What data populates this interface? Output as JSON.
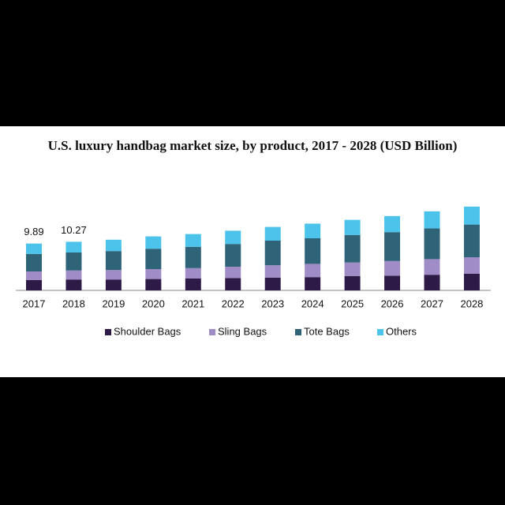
{
  "chart_data": {
    "type": "stacked_bar",
    "title": "U.S. luxury handbag market size, by product, 2017 - 2028 (USD Billion)",
    "categories": [
      "2017",
      "2018",
      "2019",
      "2020",
      "2021",
      "2022",
      "2023",
      "2024",
      "2025",
      "2026",
      "2027",
      "2028"
    ],
    "series": [
      {
        "name": "Shoulder Bags",
        "color": "#2e1a47",
        "values": [
          2.2,
          2.3,
          2.3,
          2.4,
          2.5,
          2.6,
          2.7,
          2.8,
          3.0,
          3.1,
          3.3,
          3.5
        ]
      },
      {
        "name": "Sling Bags",
        "color": "#a08cc6",
        "values": [
          1.8,
          1.9,
          2.0,
          2.1,
          2.2,
          2.4,
          2.6,
          2.8,
          2.9,
          3.1,
          3.3,
          3.5
        ]
      },
      {
        "name": "Tote Bags",
        "color": "#2f6377",
        "values": [
          3.7,
          3.8,
          4.0,
          4.3,
          4.5,
          4.8,
          5.2,
          5.4,
          5.8,
          6.1,
          6.5,
          6.9
        ]
      },
      {
        "name": "Others",
        "color": "#4cc3ea",
        "values": [
          2.19,
          2.27,
          2.4,
          2.6,
          2.7,
          2.8,
          2.9,
          3.1,
          3.2,
          3.4,
          3.6,
          3.8
        ]
      }
    ],
    "total_labels": [
      9.89,
      10.27
    ]
  }
}
